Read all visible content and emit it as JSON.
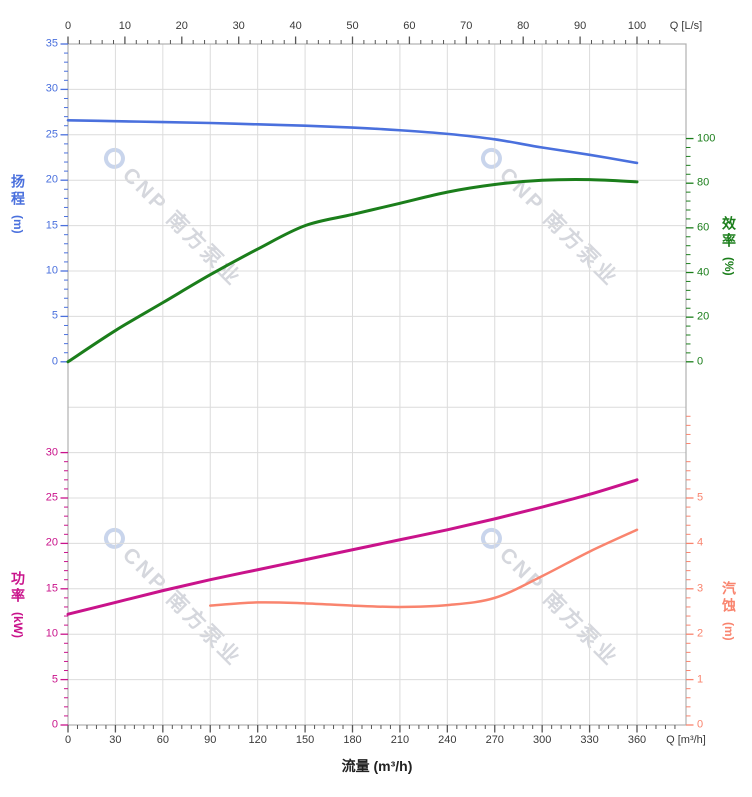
{
  "colors": {
    "grid": "#dcdcdc",
    "border": "#b0b0b0",
    "axis_text": "#3a3a3a",
    "axis_tick": "#555555",
    "watermark_text": "#d5d7dd",
    "watermark_logo": "#c9d5ec"
  },
  "watermark": {
    "text": "CNP 南方泵业"
  },
  "chart_data": {
    "type": "line",
    "grid": true,
    "x_axis_bottom": {
      "title": "流量 (m³/h)",
      "unit_label": "Q [m³/h]",
      "ticks": [
        0,
        30,
        60,
        90,
        120,
        150,
        180,
        210,
        240,
        270,
        300,
        330,
        360
      ],
      "minor_step": 6,
      "range": [
        0,
        391
      ]
    },
    "x_axis_top": {
      "unit_label": "Q [L/s]",
      "ticks": [
        0,
        10,
        20,
        30,
        40,
        50,
        60,
        70,
        80,
        90,
        100
      ],
      "minor_step": 2,
      "range": [
        0,
        108.6
      ]
    },
    "panels": [
      {
        "name": "head-efficiency",
        "left_axis": {
          "title": "扬程",
          "unit": "(m)",
          "ticks": [
            35,
            30,
            25,
            20,
            15,
            10,
            5,
            0
          ],
          "range": [
            0,
            35
          ]
        },
        "right_axis": {
          "title": "效率",
          "unit": "(%)",
          "ticks": [
            100,
            80,
            60,
            40,
            20,
            0
          ],
          "range": [
            0,
            100
          ]
        },
        "series": [
          {
            "name": "head",
            "scale": "head",
            "color": "#4a70dd",
            "x": [
              0,
              30,
              60,
              90,
              120,
              150,
              180,
              210,
              240,
              270,
              300,
              330,
              360
            ],
            "values": [
              26.6,
              26.5,
              26.4,
              26.3,
              26.15,
              26.0,
              25.8,
              25.5,
              25.1,
              24.5,
              23.6,
              22.8,
              21.9
            ]
          },
          {
            "name": "efficiency",
            "scale": "eff",
            "color": "#1b7e1b",
            "x": [
              0,
              30,
              60,
              90,
              120,
              150,
              180,
              210,
              240,
              270,
              300,
              330,
              360
            ],
            "values": [
              0,
              14,
              26.5,
              39,
              50.5,
              61,
              66,
              71,
              76,
              79.4,
              81.3,
              81.6,
              80.6
            ]
          }
        ]
      },
      {
        "name": "power-npsh",
        "left_axis": {
          "title": "功率",
          "unit": "(kW)",
          "ticks": [
            30,
            25,
            20,
            15,
            10,
            5,
            0
          ],
          "range": [
            0,
            30
          ]
        },
        "right_axis": {
          "title": "汽蚀",
          "unit": "(m)",
          "ticks": [
            5,
            4,
            3,
            2,
            1,
            0
          ],
          "range": [
            0,
            5
          ]
        },
        "series": [
          {
            "name": "power",
            "scale": "power",
            "color": "#c9138b",
            "x": [
              0,
              30,
              60,
              90,
              120,
              150,
              180,
              210,
              240,
              270,
              300,
              330,
              360
            ],
            "values": [
              12.2,
              13.5,
              14.8,
              16.0,
              17.1,
              18.2,
              19.3,
              20.4,
              21.5,
              22.7,
              24.0,
              25.4,
              27.0
            ]
          },
          {
            "name": "npsh",
            "scale": "npsh",
            "color": "#f9846e",
            "x": [
              90,
              120,
              150,
              180,
              210,
              240,
              270,
              300,
              330,
              360
            ],
            "values": [
              2.63,
              2.7,
              2.68,
              2.63,
              2.6,
              2.64,
              2.8,
              3.28,
              3.82,
              4.3
            ]
          }
        ]
      }
    ]
  }
}
